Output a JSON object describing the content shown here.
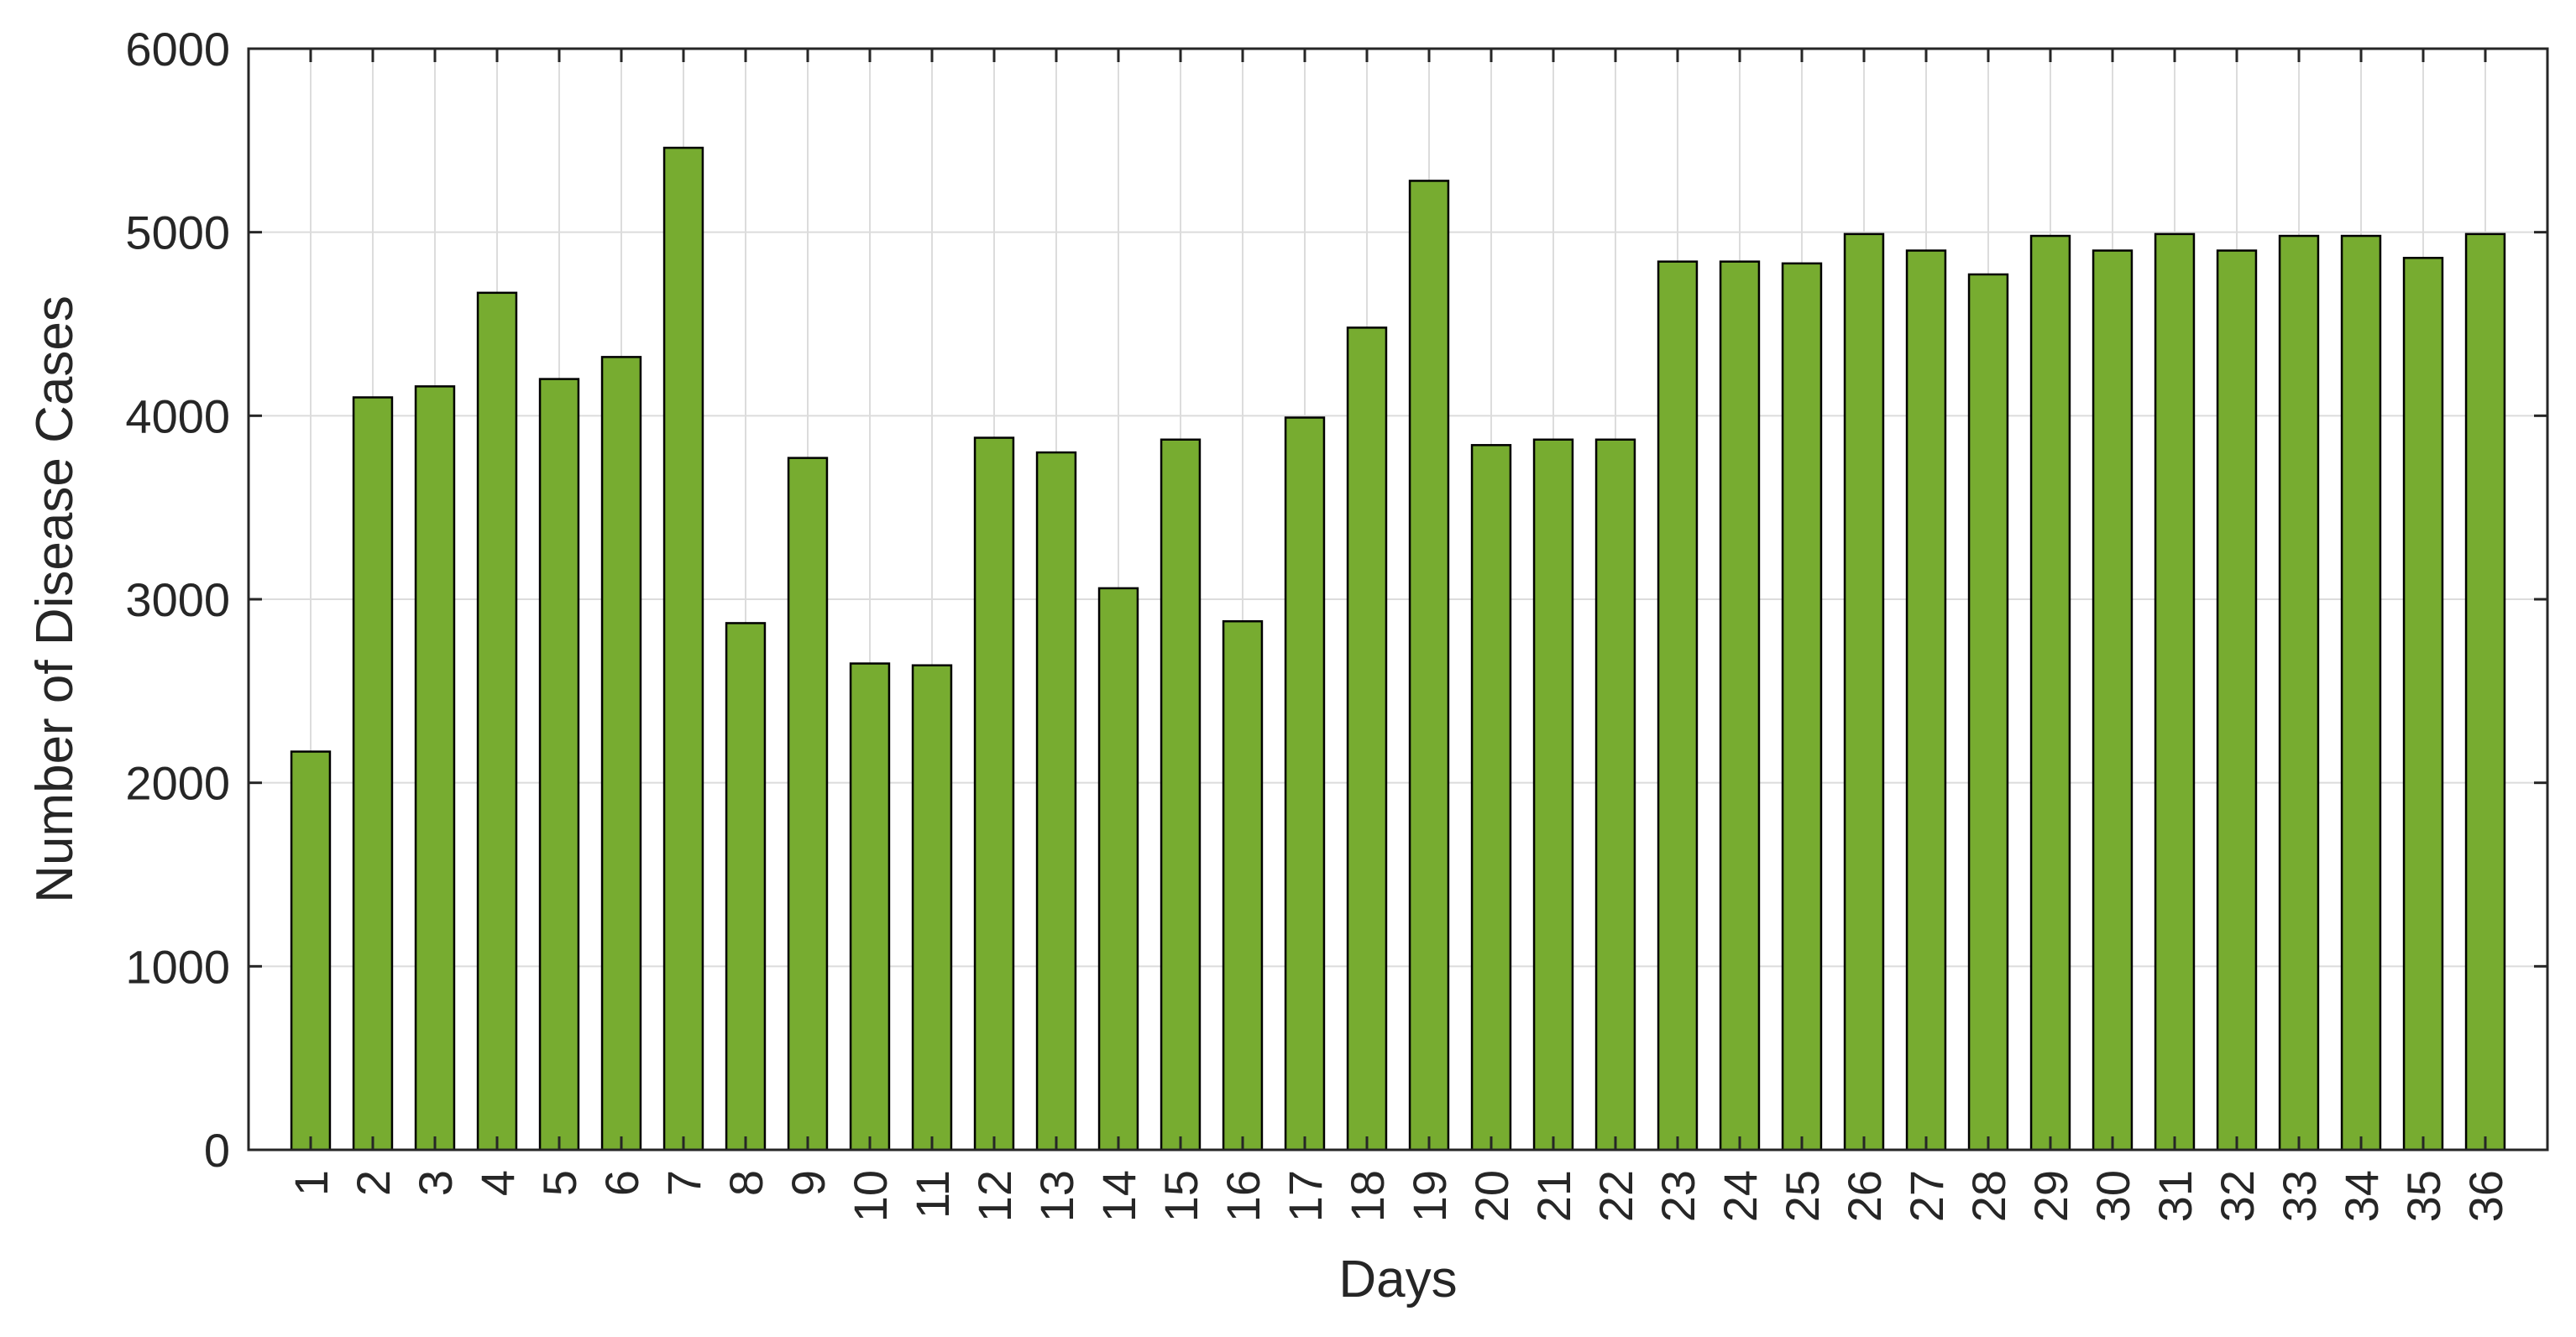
{
  "chart_data": {
    "type": "bar",
    "title": "",
    "xlabel": "Days",
    "ylabel": "Number of Disease Cases",
    "categories": [
      "1",
      "2",
      "3",
      "4",
      "5",
      "6",
      "7",
      "8",
      "9",
      "10",
      "11",
      "12",
      "13",
      "14",
      "15",
      "16",
      "17",
      "18",
      "19",
      "20",
      "21",
      "22",
      "23",
      "24",
      "25",
      "26",
      "27",
      "28",
      "29",
      "30",
      "31",
      "32",
      "33",
      "34",
      "35",
      "36"
    ],
    "values": [
      2170,
      4100,
      4160,
      4670,
      4200,
      4320,
      5460,
      2870,
      3770,
      2650,
      2640,
      3880,
      3800,
      3060,
      3870,
      2880,
      3990,
      4480,
      5280,
      3840,
      3870,
      3870,
      4840,
      4840,
      4830,
      4990,
      4900,
      4770,
      4980,
      4900,
      4990,
      4900,
      4980,
      4980,
      4860,
      4990
    ],
    "ylim": [
      0,
      6000
    ],
    "yticks": [
      0,
      1000,
      2000,
      3000,
      4000,
      5000,
      6000
    ],
    "ytick_labels": [
      "0",
      "1000",
      "2000",
      "3000",
      "4000",
      "5000",
      "6000"
    ],
    "grid": true,
    "bar_color": "#77ac30",
    "bar_edge_color": "#000000"
  }
}
